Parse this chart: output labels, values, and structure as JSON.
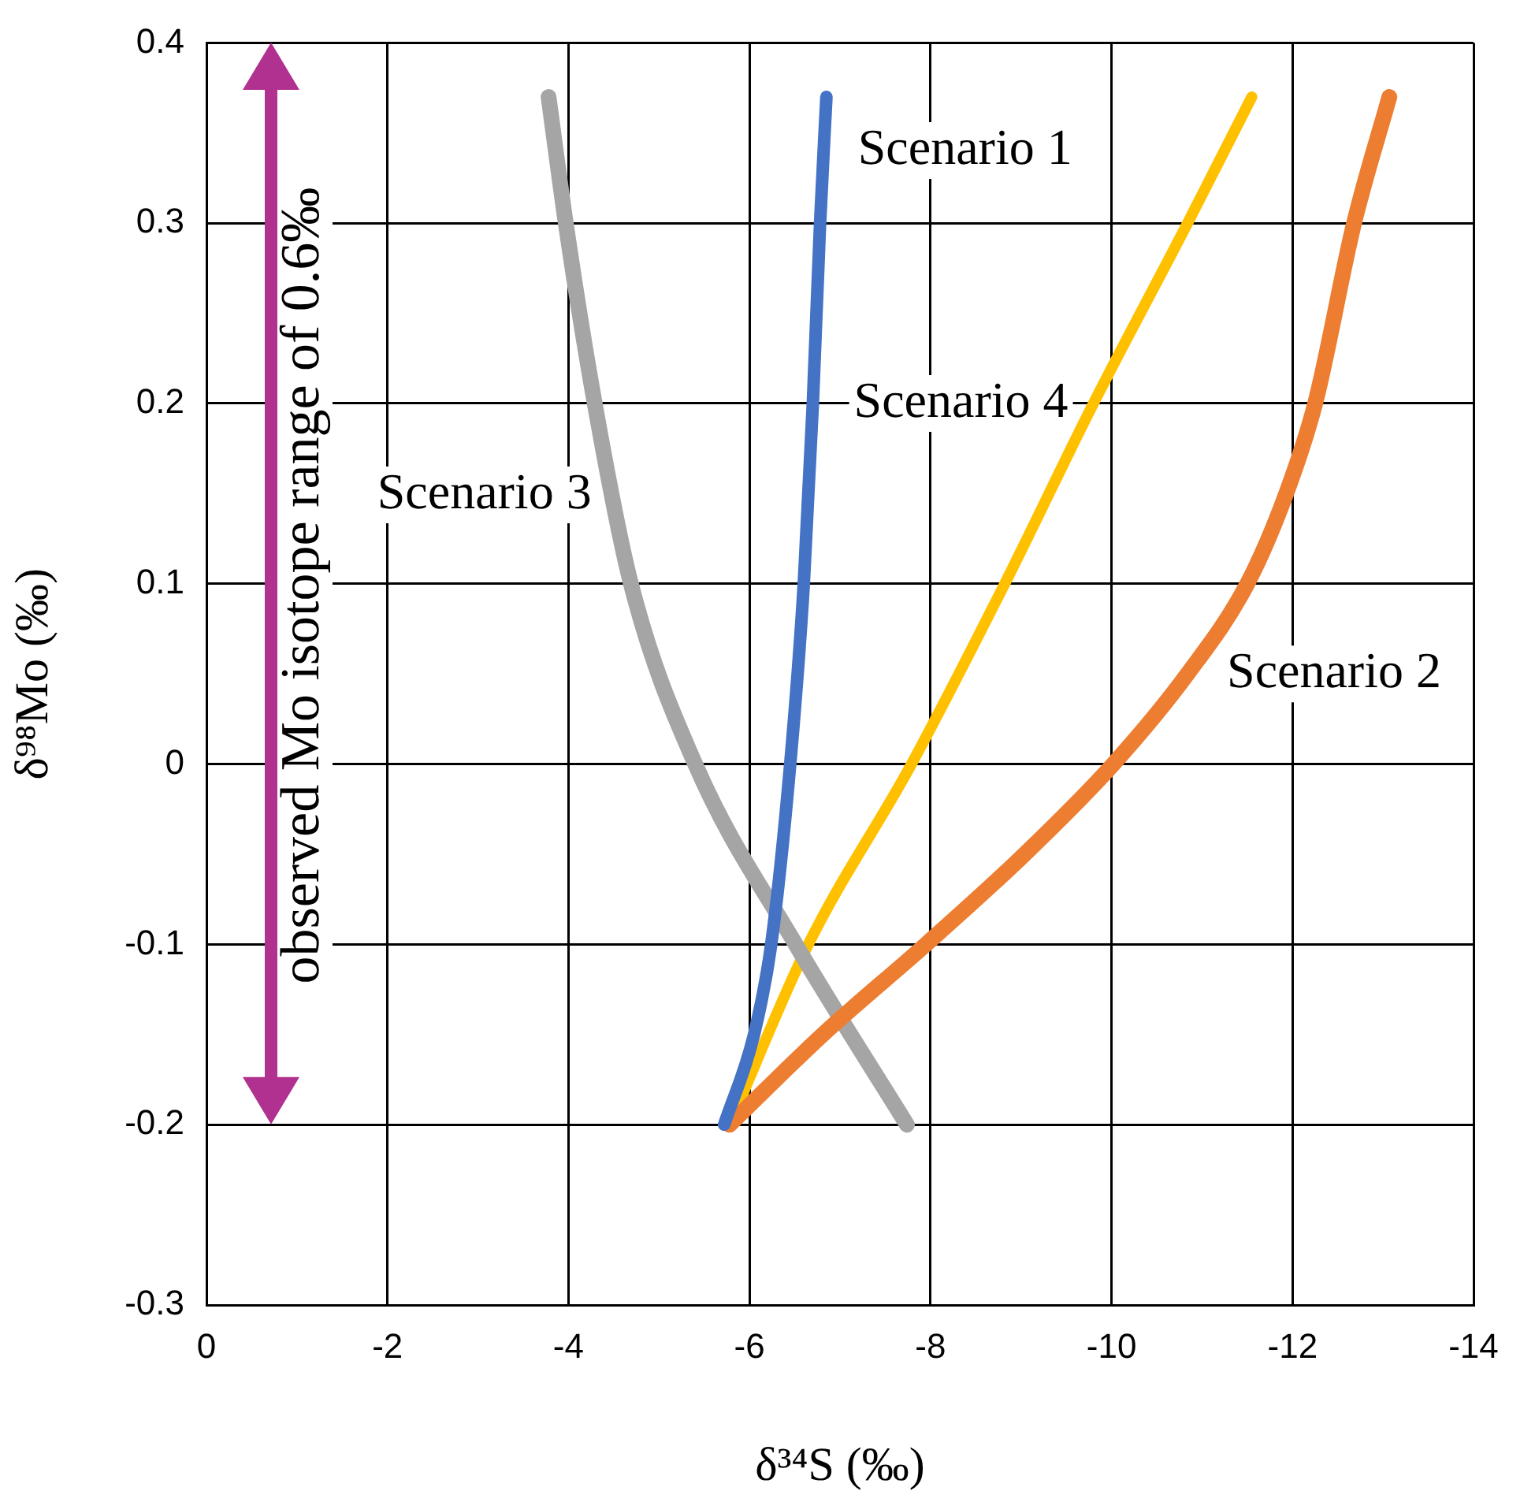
{
  "chart_data": {
    "type": "line",
    "xlabel": "δ³⁴S (‰)",
    "ylabel": "δ⁹⁸Mo (‰)",
    "xlim": [
      0,
      -14
    ],
    "xticks": [
      0,
      -2,
      -4,
      -6,
      -8,
      -10,
      -12,
      -14
    ],
    "ylim": [
      -0.3,
      0.4
    ],
    "yticks": [
      -0.3,
      -0.2,
      -0.1,
      0,
      0.1,
      0.2,
      0.3,
      0.4
    ],
    "grid": true,
    "legend": false,
    "marker": "none",
    "line_style": "solid",
    "series": [
      {
        "name": "Scenario 1",
        "color": "#4472c4",
        "x": [
          -5.72,
          -6.05,
          -6.24,
          -6.45,
          -6.6,
          -6.7,
          -6.78,
          -6.85
        ],
        "values": [
          -0.2,
          -0.15,
          -0.1,
          0,
          0.1,
          0.2,
          0.3,
          0.37
        ]
      },
      {
        "name": "Scenario 2",
        "color": "#ed7d31",
        "x": [
          -5.78,
          -6.81,
          -7.95,
          -9.04,
          -10.02,
          -10.84,
          -11.5,
          -11.93,
          -12.25,
          -12.68,
          -13.07
        ],
        "values": [
          -0.2,
          -0.15,
          -0.1,
          -0.05,
          0,
          0.05,
          0.1,
          0.15,
          0.2,
          0.3,
          0.37
        ]
      },
      {
        "name": "Scenario 3",
        "color": "#a5a5a5",
        "x": [
          -3.78,
          -3.97,
          -4.29,
          -4.69,
          -5.4,
          -6.51,
          -7.74
        ],
        "values": [
          0.37,
          0.3,
          0.2,
          0.1,
          0,
          -0.1,
          -0.2
        ]
      },
      {
        "name": "Scenario 4",
        "color": "#ffc000",
        "x": [
          -5.78,
          -6.65,
          -7.79,
          -8.82,
          -9.8,
          -10.84,
          -11.55
        ],
        "values": [
          -0.2,
          -0.1,
          0,
          0.1,
          0.2,
          0.3,
          0.37
        ]
      }
    ],
    "annotations": [
      "observed Mo isotope range of 0.6‰"
    ]
  }
}
